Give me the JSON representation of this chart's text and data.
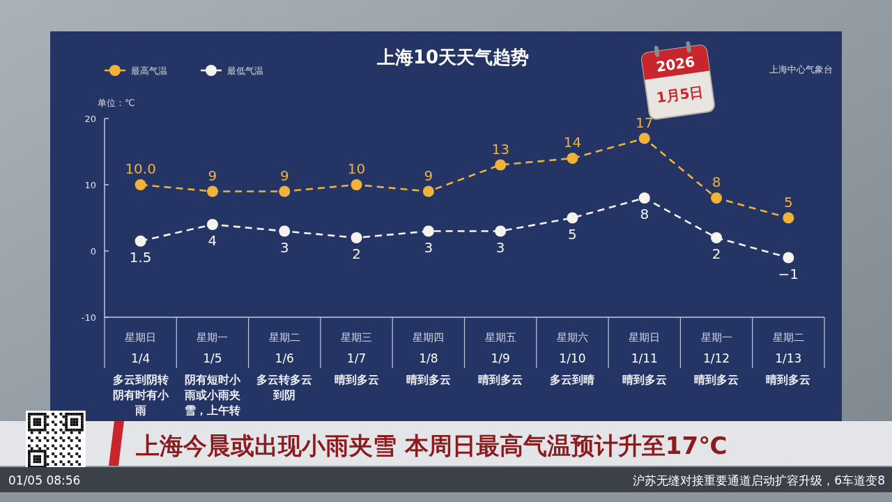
{
  "chart_data": {
    "type": "line",
    "title": "上海10天天气趋势",
    "ylabel": "单位：℃",
    "categories": [
      "星期日\n1/4\n多云到阴转阴有时有小雨",
      "星期一\n1/5\n阴有短时小雨或小雨夹雪，上午转",
      "星期二\n1/6\n多云转多云到阴",
      "星期三\n1/7\n晴到多云",
      "星期四\n1/8\n晴到多云",
      "星期五\n1/9\n晴到多云",
      "星期六\n1/10\n多云到晴",
      "星期日\n1/11\n晴到多云",
      "星期一\n1/12\n晴到多云",
      "星期二\n1/13\n晴到多云"
    ],
    "series": [
      {
        "name": "最高气温",
        "color": "#efb33a",
        "values": [
          10,
          9,
          9,
          10,
          9,
          13,
          14,
          17,
          8,
          5
        ],
        "value_labels": [
          "10.0",
          "9",
          "9",
          "10",
          "9",
          "13",
          "14",
          "17",
          "8",
          "5"
        ]
      },
      {
        "name": "最低气温",
        "color": "#f4f3ec",
        "values": [
          1.5,
          4,
          3,
          2,
          3,
          3,
          5,
          8,
          2,
          -1
        ],
        "value_labels": [
          "1.5",
          "4",
          "3",
          "2",
          "3",
          "3",
          "5",
          "8",
          "2",
          "−1"
        ]
      }
    ],
    "ylim": [
      -10,
      20
    ],
    "yticks": [
      -10,
      0,
      10,
      20
    ],
    "legend": "top left",
    "marker": "circle",
    "line_style": "dashed",
    "annotations": [
      "上海中心气象台",
      "2026",
      "1月5日",
      "上海今晨或出现小雨夹雪 本周日最高气温预计升至17℃",
      "01/05 08:56",
      "沪苏无缝对接重要通道启动扩容升级，6车道变8"
    ]
  }
}
